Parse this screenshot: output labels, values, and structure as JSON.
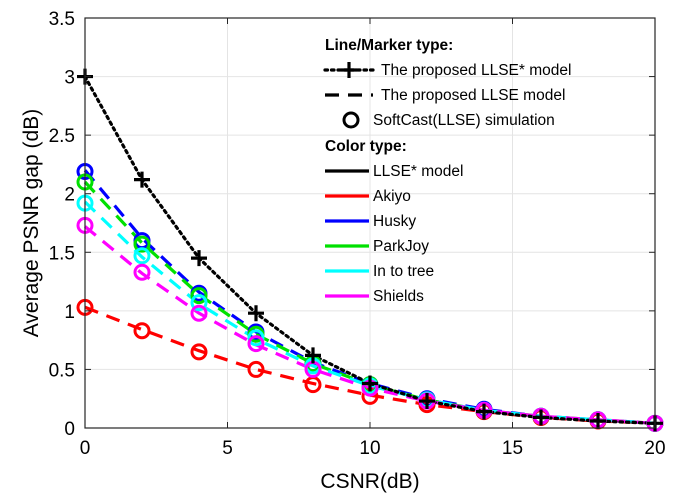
{
  "chart_data": {
    "type": "line",
    "xlabel": "CSNR(dB)",
    "ylabel": "Average PSNR gap (dB)",
    "xlim": [
      0,
      20
    ],
    "ylim": [
      0,
      3.5
    ],
    "xticks": [
      "0",
      "5",
      "10",
      "15",
      "20"
    ],
    "yticks": [
      "0",
      "0.5",
      "1",
      "1.5",
      "2",
      "2.5",
      "3",
      "3.5"
    ],
    "grid": true,
    "legend": {
      "placement": "top-right",
      "line_heading": "Line/Marker type:",
      "line_items": [
        {
          "style": "dotted-plus",
          "label": "The proposed LLSE* model"
        },
        {
          "style": "dashed",
          "label": "The proposed LLSE model"
        },
        {
          "style": "circle",
          "label": "SoftCast(LLSE) simulation"
        }
      ],
      "color_heading": "Color type:",
      "color_items": [
        {
          "color": "#000000",
          "label": "LLSE* model"
        },
        {
          "color": "#ff0000",
          "label": "Akiyo"
        },
        {
          "color": "#0000ff",
          "label": "Husky"
        },
        {
          "color": "#00e000",
          "label": "ParkJoy"
        },
        {
          "color": "#00ffff",
          "label": "In to tree"
        },
        {
          "color": "#ff00ff",
          "label": "Shields"
        }
      ]
    },
    "model_curve": {
      "color": "#000000",
      "x": [
        0,
        2,
        4,
        6,
        8,
        10,
        12,
        14,
        16,
        18,
        20
      ],
      "y": [
        3.0,
        2.12,
        1.45,
        0.98,
        0.62,
        0.38,
        0.23,
        0.14,
        0.09,
        0.06,
        0.04
      ]
    },
    "series": [
      {
        "name": "Akiyo",
        "color": "#ff0000",
        "x": [
          0,
          2,
          4,
          6,
          8,
          10,
          12,
          14,
          16,
          18,
          20
        ],
        "line": [
          1.03,
          0.84,
          0.66,
          0.5,
          0.38,
          0.28,
          0.2,
          0.14,
          0.09,
          0.06,
          0.04
        ],
        "markers": [
          1.03,
          0.83,
          0.65,
          0.5,
          0.37,
          0.27,
          0.2,
          0.14,
          0.09,
          0.06,
          0.04
        ]
      },
      {
        "name": "Husky",
        "color": "#0000ff",
        "x": [
          0,
          2,
          4,
          6,
          8,
          10,
          12,
          14,
          16,
          18,
          20
        ],
        "line": [
          2.2,
          1.62,
          1.16,
          0.82,
          0.56,
          0.38,
          0.25,
          0.16,
          0.1,
          0.07,
          0.04
        ],
        "markers": [
          2.19,
          1.6,
          1.15,
          0.82,
          0.55,
          0.37,
          0.25,
          0.16,
          0.1,
          0.07,
          0.04
        ]
      },
      {
        "name": "ParkJoy",
        "color": "#00e000",
        "x": [
          0,
          2,
          4,
          6,
          8,
          10,
          12,
          14,
          16,
          18,
          20
        ],
        "line": [
          2.1,
          1.58,
          1.14,
          0.8,
          0.55,
          0.37,
          0.24,
          0.15,
          0.1,
          0.07,
          0.04
        ],
        "markers": [
          2.1,
          1.57,
          1.13,
          0.8,
          0.55,
          0.37,
          0.24,
          0.15,
          0.1,
          0.07,
          0.04
        ]
      },
      {
        "name": "In to tree",
        "color": "#00ffff",
        "x": [
          0,
          2,
          4,
          6,
          8,
          10,
          12,
          14,
          16,
          18,
          20
        ],
        "line": [
          1.93,
          1.46,
          1.06,
          0.76,
          0.53,
          0.36,
          0.24,
          0.15,
          0.1,
          0.07,
          0.04
        ],
        "markers": [
          1.92,
          1.47,
          1.07,
          0.77,
          0.53,
          0.36,
          0.24,
          0.15,
          0.1,
          0.07,
          0.04
        ]
      },
      {
        "name": "Shields",
        "color": "#ff00ff",
        "x": [
          0,
          2,
          4,
          6,
          8,
          10,
          12,
          14,
          16,
          18,
          20
        ],
        "line": [
          1.72,
          1.32,
          0.98,
          0.71,
          0.5,
          0.34,
          0.23,
          0.15,
          0.1,
          0.07,
          0.04
        ],
        "markers": [
          1.73,
          1.33,
          0.98,
          0.72,
          0.5,
          0.34,
          0.23,
          0.15,
          0.1,
          0.07,
          0.04
        ]
      }
    ]
  }
}
